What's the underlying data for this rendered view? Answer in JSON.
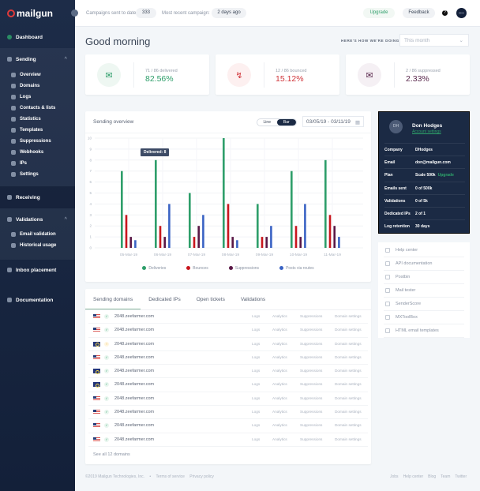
{
  "brand": "mailgun",
  "sidebar": {
    "dashboard": "Dashboard",
    "sending": {
      "label": "Sending",
      "items": [
        "Overview",
        "Domains",
        "Logs",
        "Contacts & lists",
        "Statistics",
        "Templates",
        "Suppressions",
        "Webhooks",
        "IPs",
        "Settings"
      ]
    },
    "receiving": "Receiving",
    "validations": {
      "label": "Validations",
      "items": [
        "Email validation",
        "Historical usage"
      ]
    },
    "inbox": "Inbox placement",
    "docs": "Documentation"
  },
  "topbar": {
    "campaigns_label": "Campaigns sent to date:",
    "campaigns_value": "333",
    "recent_label": "Most recent campaign:",
    "recent_value": "2 days ago",
    "upgrade": "Upgrade",
    "feedback": "Feedback",
    "help": "?",
    "avatar": "DH"
  },
  "greeting": "Good morning",
  "doing_label": "HERE'S HOW WE'RE DOING",
  "period": "This month",
  "stats": [
    {
      "label": "71 / 86 delivered",
      "value": "82.56%",
      "color": "#2e9e6a",
      "bg": "#eef7f2",
      "icon": "envelope-open-icon"
    },
    {
      "label": "12 / 86 bounced",
      "value": "15.12%",
      "color": "#d0363b",
      "bg": "#fdf0f0",
      "icon": "bounce-icon"
    },
    {
      "label": "2 / 86 suppressed",
      "value": "2.33%",
      "color": "#5b2a4e",
      "bg": "#f5f0f4",
      "icon": "envelope-x-icon"
    }
  ],
  "chart_card": {
    "title": "Sending overview",
    "toggle": [
      "Line",
      "Bar"
    ],
    "date_range": "03/05/19 - 03/11/19",
    "tooltip": "Delivered: 8"
  },
  "chart_data": {
    "type": "bar",
    "title": "Sending overview",
    "ylim": [
      0,
      10
    ],
    "yticks": [
      0,
      1,
      2,
      3,
      4,
      5,
      6,
      7,
      8,
      9,
      10
    ],
    "categories": [
      "05-Mar-19",
      "06-Mar-19",
      "07-Mar-19",
      "08-Mar-19",
      "09-Mar-19",
      "10-Mar-19",
      "11-Mar-19"
    ],
    "series": [
      {
        "name": "Deliveries",
        "color": "#2e9e6a",
        "values": [
          7,
          8,
          5,
          10,
          4,
          7,
          8
        ]
      },
      {
        "name": "Bounces",
        "color": "#c8161d",
        "values": [
          3,
          2,
          1,
          4,
          1,
          2,
          3
        ]
      },
      {
        "name": "Suppressions",
        "color": "#5a1846",
        "values": [
          1,
          1,
          2,
          1,
          1,
          1,
          2
        ]
      },
      {
        "name": "Posts via routes",
        "color": "#3a63c4",
        "values": [
          0.7,
          4,
          3,
          0.7,
          2,
          4,
          1
        ]
      }
    ],
    "legend": "bottom",
    "grid": true
  },
  "account": {
    "initials": "DH",
    "name": "Don Hodges",
    "settings": "Account settings",
    "upgrade": "Upgrade",
    "rows": [
      [
        "Company",
        "DHodges"
      ],
      [
        "Email",
        "don@mailgun.com"
      ],
      [
        "Plan",
        "Scale 500k"
      ],
      [
        "Emails sent",
        "0 of 500k"
      ],
      [
        "Validations",
        "0 of 5k"
      ],
      [
        "Dedicated IPs",
        "2 of 1"
      ],
      [
        "Log retention",
        "30 days"
      ]
    ]
  },
  "links": [
    "Help center",
    "API documentation",
    "Postbin",
    "Mail tester",
    "SenderScore",
    "MXToolBox",
    "HTML email templates"
  ],
  "tabs": [
    "Sending domains",
    "Dedicated IPs",
    "Open tickets",
    "Validations"
  ],
  "domains": [
    {
      "flag": "us",
      "status": "ok",
      "name": "2048.zeefarmer.com"
    },
    {
      "flag": "us",
      "status": "ok",
      "name": "2048.zeefarmer.com"
    },
    {
      "flag": "eu",
      "status": "warn",
      "name": "2048.zeefarmer.com"
    },
    {
      "flag": "us",
      "status": "ok",
      "name": "2048.zeefarmer.com"
    },
    {
      "flag": "eu",
      "status": "ok",
      "name": "2048.zeefarmer.com"
    },
    {
      "flag": "eu",
      "status": "ok",
      "name": "2048.zeefarmer.com"
    },
    {
      "flag": "us",
      "status": "ok",
      "name": "2048.zeefarmer.com"
    },
    {
      "flag": "us",
      "status": "ok",
      "name": "2048.zeefarmer.com"
    },
    {
      "flag": "us",
      "status": "ok",
      "name": "2048.zeefarmer.com"
    },
    {
      "flag": "us",
      "status": "ok",
      "name": "2048.zeefarmer.com"
    }
  ],
  "row_actions": [
    "Logs",
    "Analytics",
    "Suppressions",
    "Domain settings"
  ],
  "see_all": "See all 12 domains",
  "footer": {
    "copyright": "©2019 Mailgun Technologies, Inc.",
    "sep": "•",
    "left_links": [
      "Terms of service",
      "Privacy policy"
    ],
    "right_links": [
      "Jobs",
      "Help center",
      "Blog",
      "Team",
      "Twitter"
    ]
  }
}
